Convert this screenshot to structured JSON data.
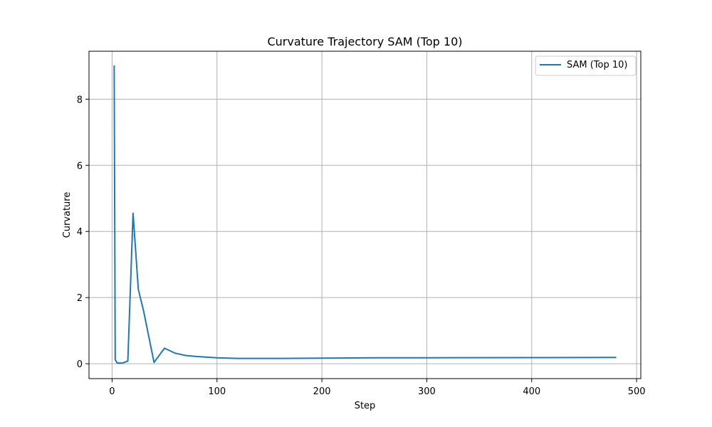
{
  "chart_data": {
    "type": "line",
    "title": "Curvature Trajectory SAM (Top 10)",
    "xlabel": "Step",
    "ylabel": "Curvature",
    "xlim": [
      -22,
      504
    ],
    "ylim": [
      -0.45,
      9.45
    ],
    "xticks": [
      0,
      100,
      200,
      300,
      400,
      500
    ],
    "yticks": [
      0,
      2,
      4,
      6,
      8
    ],
    "grid": true,
    "legend": {
      "position": "top-right",
      "entries": [
        "SAM (Top 10)"
      ]
    },
    "series": [
      {
        "name": "SAM (Top 10)",
        "color": "#1f77b4",
        "x": [
          2,
          3,
          5,
          10,
          15,
          20,
          25,
          30,
          40,
          50,
          60,
          70,
          80,
          100,
          120,
          160,
          200,
          250,
          300,
          400,
          480
        ],
        "y": [
          9.0,
          0.12,
          0.02,
          0.02,
          0.08,
          4.55,
          2.25,
          1.6,
          0.04,
          0.47,
          0.32,
          0.25,
          0.22,
          0.18,
          0.16,
          0.16,
          0.17,
          0.18,
          0.18,
          0.185,
          0.19
        ]
      }
    ]
  }
}
